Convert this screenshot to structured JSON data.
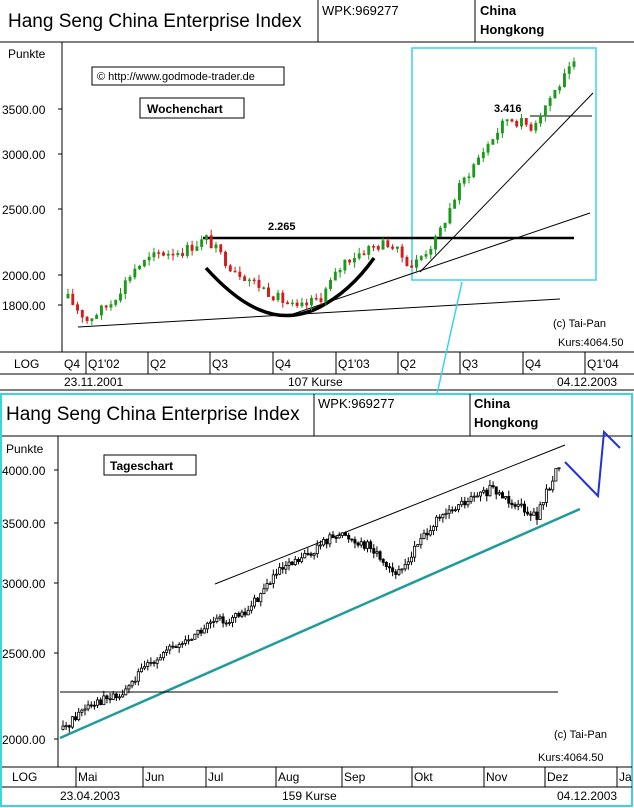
{
  "chart_data": [
    {
      "type": "candlestick",
      "title": "Hang Seng China Enterprise Index",
      "wpk": "WPK:969277",
      "region_line1": "China",
      "region_line2": "Hongkong",
      "unit_label": "Punkte",
      "period_label": "Wochenchart",
      "copyright_url": "© http://www.godmode-trader.de",
      "credit": "(c) Tai-Pan",
      "kurs": "Kurs:4064.50",
      "scale": "LOG",
      "y_ticks": [
        "3500.00",
        "3000.00",
        "2500.00",
        "2000.00",
        "1800.00"
      ],
      "x_ticks": [
        "Q4",
        "Q1'02",
        "Q2",
        "Q3",
        "Q4",
        "Q1'03",
        "Q2",
        "Q3",
        "Q4",
        "Q1'04"
      ],
      "start_date": "23.11.2001",
      "bar_count": "107 Kurse",
      "end_date": "04.12.2003",
      "annotations": [
        "2.265",
        "3.416"
      ],
      "levels": {
        "resistance": 2265,
        "breakout": 3416
      },
      "trend_points": [
        [
          "2001-11-23",
          1850
        ],
        [
          "2001-12-21",
          1720
        ],
        [
          "2002-01-25",
          1820
        ],
        [
          "2002-03-01",
          2050
        ],
        [
          "2002-04-05",
          2150
        ],
        [
          "2002-05-10",
          2170
        ],
        [
          "2002-06-14",
          2260
        ],
        [
          "2002-07-19",
          2060
        ],
        [
          "2002-08-23",
          1950
        ],
        [
          "2002-09-27",
          1850
        ],
        [
          "2002-10-25",
          1780
        ],
        [
          "2002-11-29",
          1860
        ],
        [
          "2003-01-03",
          2100
        ],
        [
          "2003-02-07",
          2190
        ],
        [
          "2003-03-07",
          2230
        ],
        [
          "2003-04-11",
          2060
        ],
        [
          "2003-05-16",
          2250
        ],
        [
          "2003-06-20",
          2700
        ],
        [
          "2003-07-25",
          3050
        ],
        [
          "2003-08-29",
          3400
        ],
        [
          "2003-10-03",
          3300
        ],
        [
          "2003-10-31",
          3650
        ],
        [
          "2003-12-04",
          4064
        ]
      ]
    },
    {
      "type": "candlestick",
      "title": "Hang Seng China Enterprise Index",
      "wpk": "WPK:969277",
      "region_line1": "China",
      "region_line2": "Hongkong",
      "unit_label": "Punkte",
      "period_label": "Tageschart",
      "credit": "(c) Tai-Pan",
      "kurs": "Kurs:4064.50",
      "scale": "LOG",
      "y_ticks": [
        "4000.00",
        "3500.00",
        "3000.00",
        "2500.00",
        "2000.00"
      ],
      "x_ticks": [
        "Mai",
        "Jun",
        "Jul",
        "Aug",
        "Sep",
        "Okt",
        "Nov",
        "Dez",
        "Ja"
      ],
      "start_date": "23.04.2003",
      "bar_count": "159 Kurse",
      "end_date": "04.12.2003",
      "trend_points": [
        [
          "2003-04-23",
          2050
        ],
        [
          "2003-05-05",
          2200
        ],
        [
          "2003-05-19",
          2230
        ],
        [
          "2003-06-02",
          2450
        ],
        [
          "2003-06-16",
          2560
        ],
        [
          "2003-06-30",
          2700
        ],
        [
          "2003-07-14",
          2750
        ],
        [
          "2003-07-28",
          3050
        ],
        [
          "2003-08-11",
          3200
        ],
        [
          "2003-08-25",
          3400
        ],
        [
          "2003-09-08",
          3300
        ],
        [
          "2003-09-22",
          3050
        ],
        [
          "2003-10-06",
          3450
        ],
        [
          "2003-10-20",
          3650
        ],
        [
          "2003-11-03",
          3800
        ],
        [
          "2003-11-17",
          3650
        ],
        [
          "2003-11-24",
          3550
        ],
        [
          "2003-12-04",
          4064
        ]
      ]
    }
  ]
}
